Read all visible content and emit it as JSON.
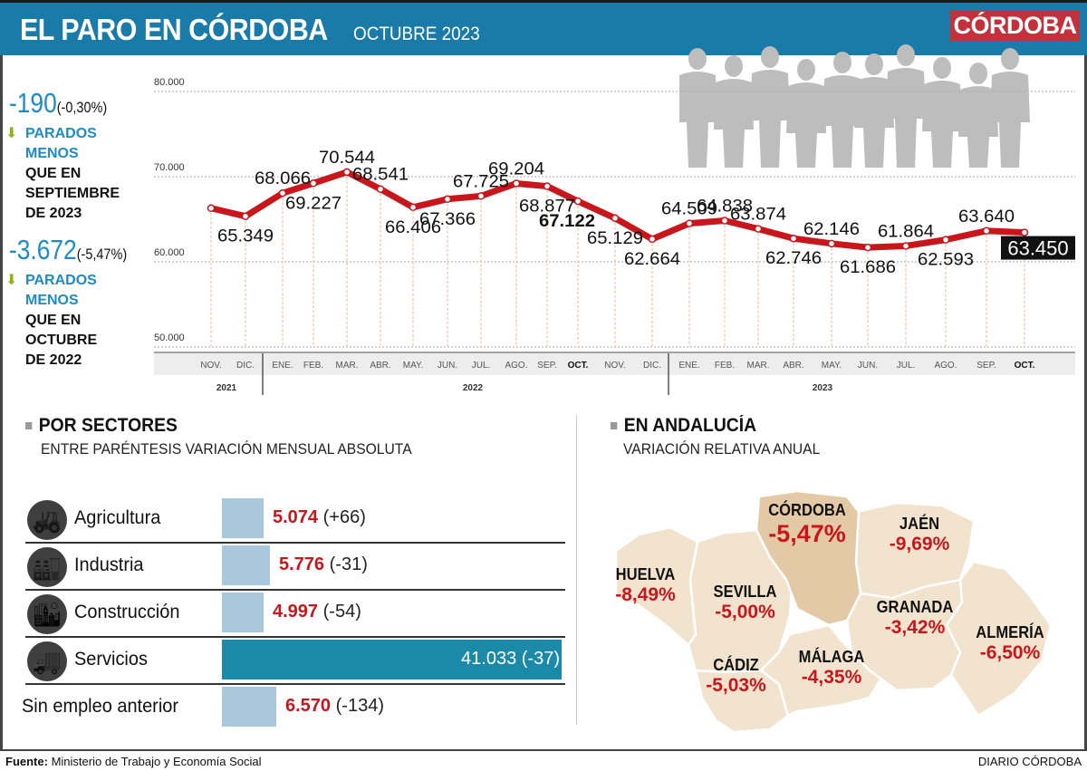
{
  "header": {
    "title": "EL PARO EN CÓRDOBA",
    "subtitle": "OCTUBRE 2023",
    "logo": "CÓRDOBA",
    "color": "#1b7ba8",
    "logo_color": "#c3313c"
  },
  "stats": [
    {
      "value": "-190",
      "pct": "(-0,30%)",
      "line1": "PARADOS",
      "line2": "MENOS",
      "line3": "QUE EN",
      "line4": "SEPTIEMBRE",
      "line5": "DE 2023",
      "icon": "arrow-down-icon"
    },
    {
      "value": "-3.672",
      "pct": "(-5,47%)",
      "line1": "PARADOS",
      "line2": "MENOS",
      "line3": "QUE EN",
      "line4": "OCTUBRE",
      "line5": "DE 2022",
      "icon": "arrow-down-icon"
    }
  ],
  "chart_data": {
    "type": "line",
    "yticks": [
      "80.000",
      "70.000",
      "60.000",
      "50.000"
    ],
    "ylim": [
      50000,
      80000
    ],
    "grid": true,
    "line_color": "#c8161d",
    "x": [
      "NOV.",
      "DIC.",
      "ENE.",
      "FEB.",
      "MAR.",
      "ABR.",
      "MAY.",
      "JUN.",
      "JUL.",
      "AGO.",
      "SEP.",
      "OCT.",
      "NOV.",
      "DIC.",
      "ENE.",
      "FEB.",
      "MAR.",
      "ABR.",
      "MAY.",
      "JUN.",
      "JUL.",
      "AGO.",
      "SEP.",
      "OCT."
    ],
    "years": [
      {
        "label": "2021"
      },
      {
        "label": "2022"
      },
      {
        "label": "2023"
      }
    ],
    "values": [
      66300,
      65349,
      68066,
      69227,
      70544,
      68541,
      66406,
      67366,
      67725,
      69204,
      68877,
      67122,
      65129,
      62664,
      64509,
      64838,
      63874,
      62746,
      62146,
      61686,
      61864,
      62593,
      63640,
      63450
    ],
    "labels": [
      null,
      "65.349",
      "68.066",
      "69.227",
      "70.544",
      "68.541",
      "66.406",
      "67.366",
      "67.725",
      "69.204",
      "68.877",
      "67.122",
      "65.129",
      "62.664",
      "64.509",
      "64.838",
      "63.874",
      "62.746",
      "62.146",
      "61.686",
      "61.864",
      "62.593",
      "63.640",
      "63.450"
    ]
  },
  "sectors": {
    "title": "POR SECTORES",
    "subtitle": "ENTRE PARÉNTESIS VARIACIÓN MENSUAL ABSOLUTA",
    "items": [
      {
        "name": "Agricultura",
        "value": 5074,
        "value_label": "5.074",
        "change": "(+66)",
        "icon": "tractor-icon"
      },
      {
        "name": "Industria",
        "value": 5776,
        "value_label": "5.776",
        "change": "(-31)",
        "icon": "factory-icon"
      },
      {
        "name": "Construcción",
        "value": 4997,
        "value_label": "4.997",
        "change": "(-54)",
        "icon": "buildings-icon"
      },
      {
        "name": "Servicios",
        "value": 41033,
        "value_label": "41.033",
        "change": "(-37)",
        "icon": "truck-icon"
      },
      {
        "name": "Sin empleo anterior",
        "value": 6570,
        "value_label": "6.570",
        "change": "(-134)"
      }
    ]
  },
  "andalucia": {
    "title": "EN ANDALUCÍA",
    "subtitle": "VARIACIÓN RELATIVA ANUAL",
    "provinces": [
      {
        "name": "CÓRDOBA",
        "value": "-5,47%"
      },
      {
        "name": "JAÉN",
        "value": "-9,69%"
      },
      {
        "name": "HUELVA",
        "value": "-8,49%"
      },
      {
        "name": "SEVILLA",
        "value": "-5,00%"
      },
      {
        "name": "GRANADA",
        "value": "-3,42%"
      },
      {
        "name": "ALMERÍA",
        "value": "-6,50%"
      },
      {
        "name": "CÁDIZ",
        "value": "-5,03%"
      },
      {
        "name": "MÁLAGA",
        "value": "-4,35%"
      }
    ]
  },
  "footer": {
    "source_label": "Fuente:",
    "source": "Ministerio de Trabajo y Economía Social",
    "brand": "DIARIO CÓRDOBA"
  }
}
